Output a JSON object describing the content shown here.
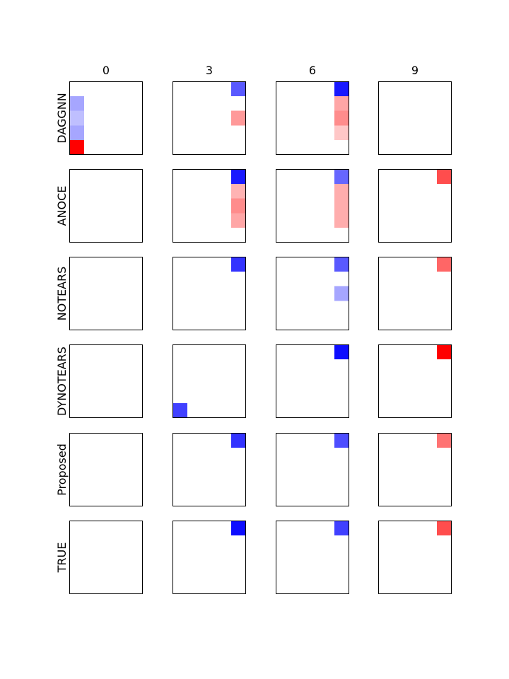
{
  "chart_data": {
    "type": "heatmap",
    "grid_size": 5,
    "columns": [
      "0",
      "3",
      "6",
      "9"
    ],
    "rows": [
      "DAGGNN",
      "ANOCE",
      "NOTEARS",
      "DYNOTEARS",
      "Proposed",
      "TRUE"
    ],
    "value_range": [
      -1,
      1
    ],
    "colors": {
      "positive": "#ff0000",
      "negative": "#0000ff",
      "zero": "#ffffff",
      "border": "#000000"
    },
    "panels": [
      {
        "row": "DAGGNN",
        "col": "0",
        "cells": [
          {
            "r": 1,
            "c": 0,
            "v": -0.35
          },
          {
            "r": 2,
            "c": 0,
            "v": -0.25
          },
          {
            "r": 3,
            "c": 0,
            "v": -0.35
          },
          {
            "r": 4,
            "c": 0,
            "v": 1.0
          }
        ]
      },
      {
        "row": "DAGGNN",
        "col": "3",
        "cells": [
          {
            "r": 0,
            "c": 4,
            "v": -0.65
          },
          {
            "r": 2,
            "c": 4,
            "v": 0.4
          }
        ]
      },
      {
        "row": "DAGGNN",
        "col": "6",
        "cells": [
          {
            "r": 0,
            "c": 4,
            "v": -0.9
          },
          {
            "r": 1,
            "c": 4,
            "v": 0.35
          },
          {
            "r": 2,
            "c": 4,
            "v": 0.45
          },
          {
            "r": 3,
            "c": 4,
            "v": 0.22
          }
        ]
      },
      {
        "row": "DAGGNN",
        "col": "9",
        "cells": []
      },
      {
        "row": "ANOCE",
        "col": "0",
        "cells": []
      },
      {
        "row": "ANOCE",
        "col": "3",
        "cells": [
          {
            "r": 0,
            "c": 4,
            "v": -0.9
          },
          {
            "r": 1,
            "c": 4,
            "v": 0.3
          },
          {
            "r": 2,
            "c": 4,
            "v": 0.45
          },
          {
            "r": 3,
            "c": 4,
            "v": 0.35
          }
        ]
      },
      {
        "row": "ANOCE",
        "col": "6",
        "cells": [
          {
            "r": 0,
            "c": 4,
            "v": -0.6
          },
          {
            "r": 1,
            "c": 4,
            "v": 0.32
          },
          {
            "r": 2,
            "c": 4,
            "v": 0.32
          },
          {
            "r": 3,
            "c": 4,
            "v": 0.32
          }
        ]
      },
      {
        "row": "ANOCE",
        "col": "9",
        "cells": [
          {
            "r": 0,
            "c": 4,
            "v": 0.7
          }
        ]
      },
      {
        "row": "NOTEARS",
        "col": "0",
        "cells": []
      },
      {
        "row": "NOTEARS",
        "col": "3",
        "cells": [
          {
            "r": 0,
            "c": 4,
            "v": -0.8
          }
        ]
      },
      {
        "row": "NOTEARS",
        "col": "6",
        "cells": [
          {
            "r": 0,
            "c": 4,
            "v": -0.65
          },
          {
            "r": 2,
            "c": 4,
            "v": -0.35
          }
        ]
      },
      {
        "row": "NOTEARS",
        "col": "9",
        "cells": [
          {
            "r": 0,
            "c": 4,
            "v": 0.6
          }
        ]
      },
      {
        "row": "DYNOTEARS",
        "col": "0",
        "cells": []
      },
      {
        "row": "DYNOTEARS",
        "col": "3",
        "cells": [
          {
            "r": 4,
            "c": 0,
            "v": -0.75
          }
        ]
      },
      {
        "row": "DYNOTEARS",
        "col": "6",
        "cells": [
          {
            "r": 0,
            "c": 4,
            "v": -0.95
          }
        ]
      },
      {
        "row": "DYNOTEARS",
        "col": "9",
        "cells": [
          {
            "r": 0,
            "c": 4,
            "v": 1.0
          }
        ]
      },
      {
        "row": "Proposed",
        "col": "0",
        "cells": []
      },
      {
        "row": "Proposed",
        "col": "3",
        "cells": [
          {
            "r": 0,
            "c": 4,
            "v": -0.8
          }
        ]
      },
      {
        "row": "Proposed",
        "col": "6",
        "cells": [
          {
            "r": 0,
            "c": 4,
            "v": -0.7
          }
        ]
      },
      {
        "row": "Proposed",
        "col": "9",
        "cells": [
          {
            "r": 0,
            "c": 4,
            "v": 0.55
          }
        ]
      },
      {
        "row": "TRUE",
        "col": "0",
        "cells": []
      },
      {
        "row": "TRUE",
        "col": "3",
        "cells": [
          {
            "r": 0,
            "c": 4,
            "v": -0.95
          }
        ]
      },
      {
        "row": "TRUE",
        "col": "6",
        "cells": [
          {
            "r": 0,
            "c": 4,
            "v": -0.75
          }
        ]
      },
      {
        "row": "TRUE",
        "col": "9",
        "cells": [
          {
            "r": 0,
            "c": 4,
            "v": 0.7
          }
        ]
      }
    ]
  }
}
